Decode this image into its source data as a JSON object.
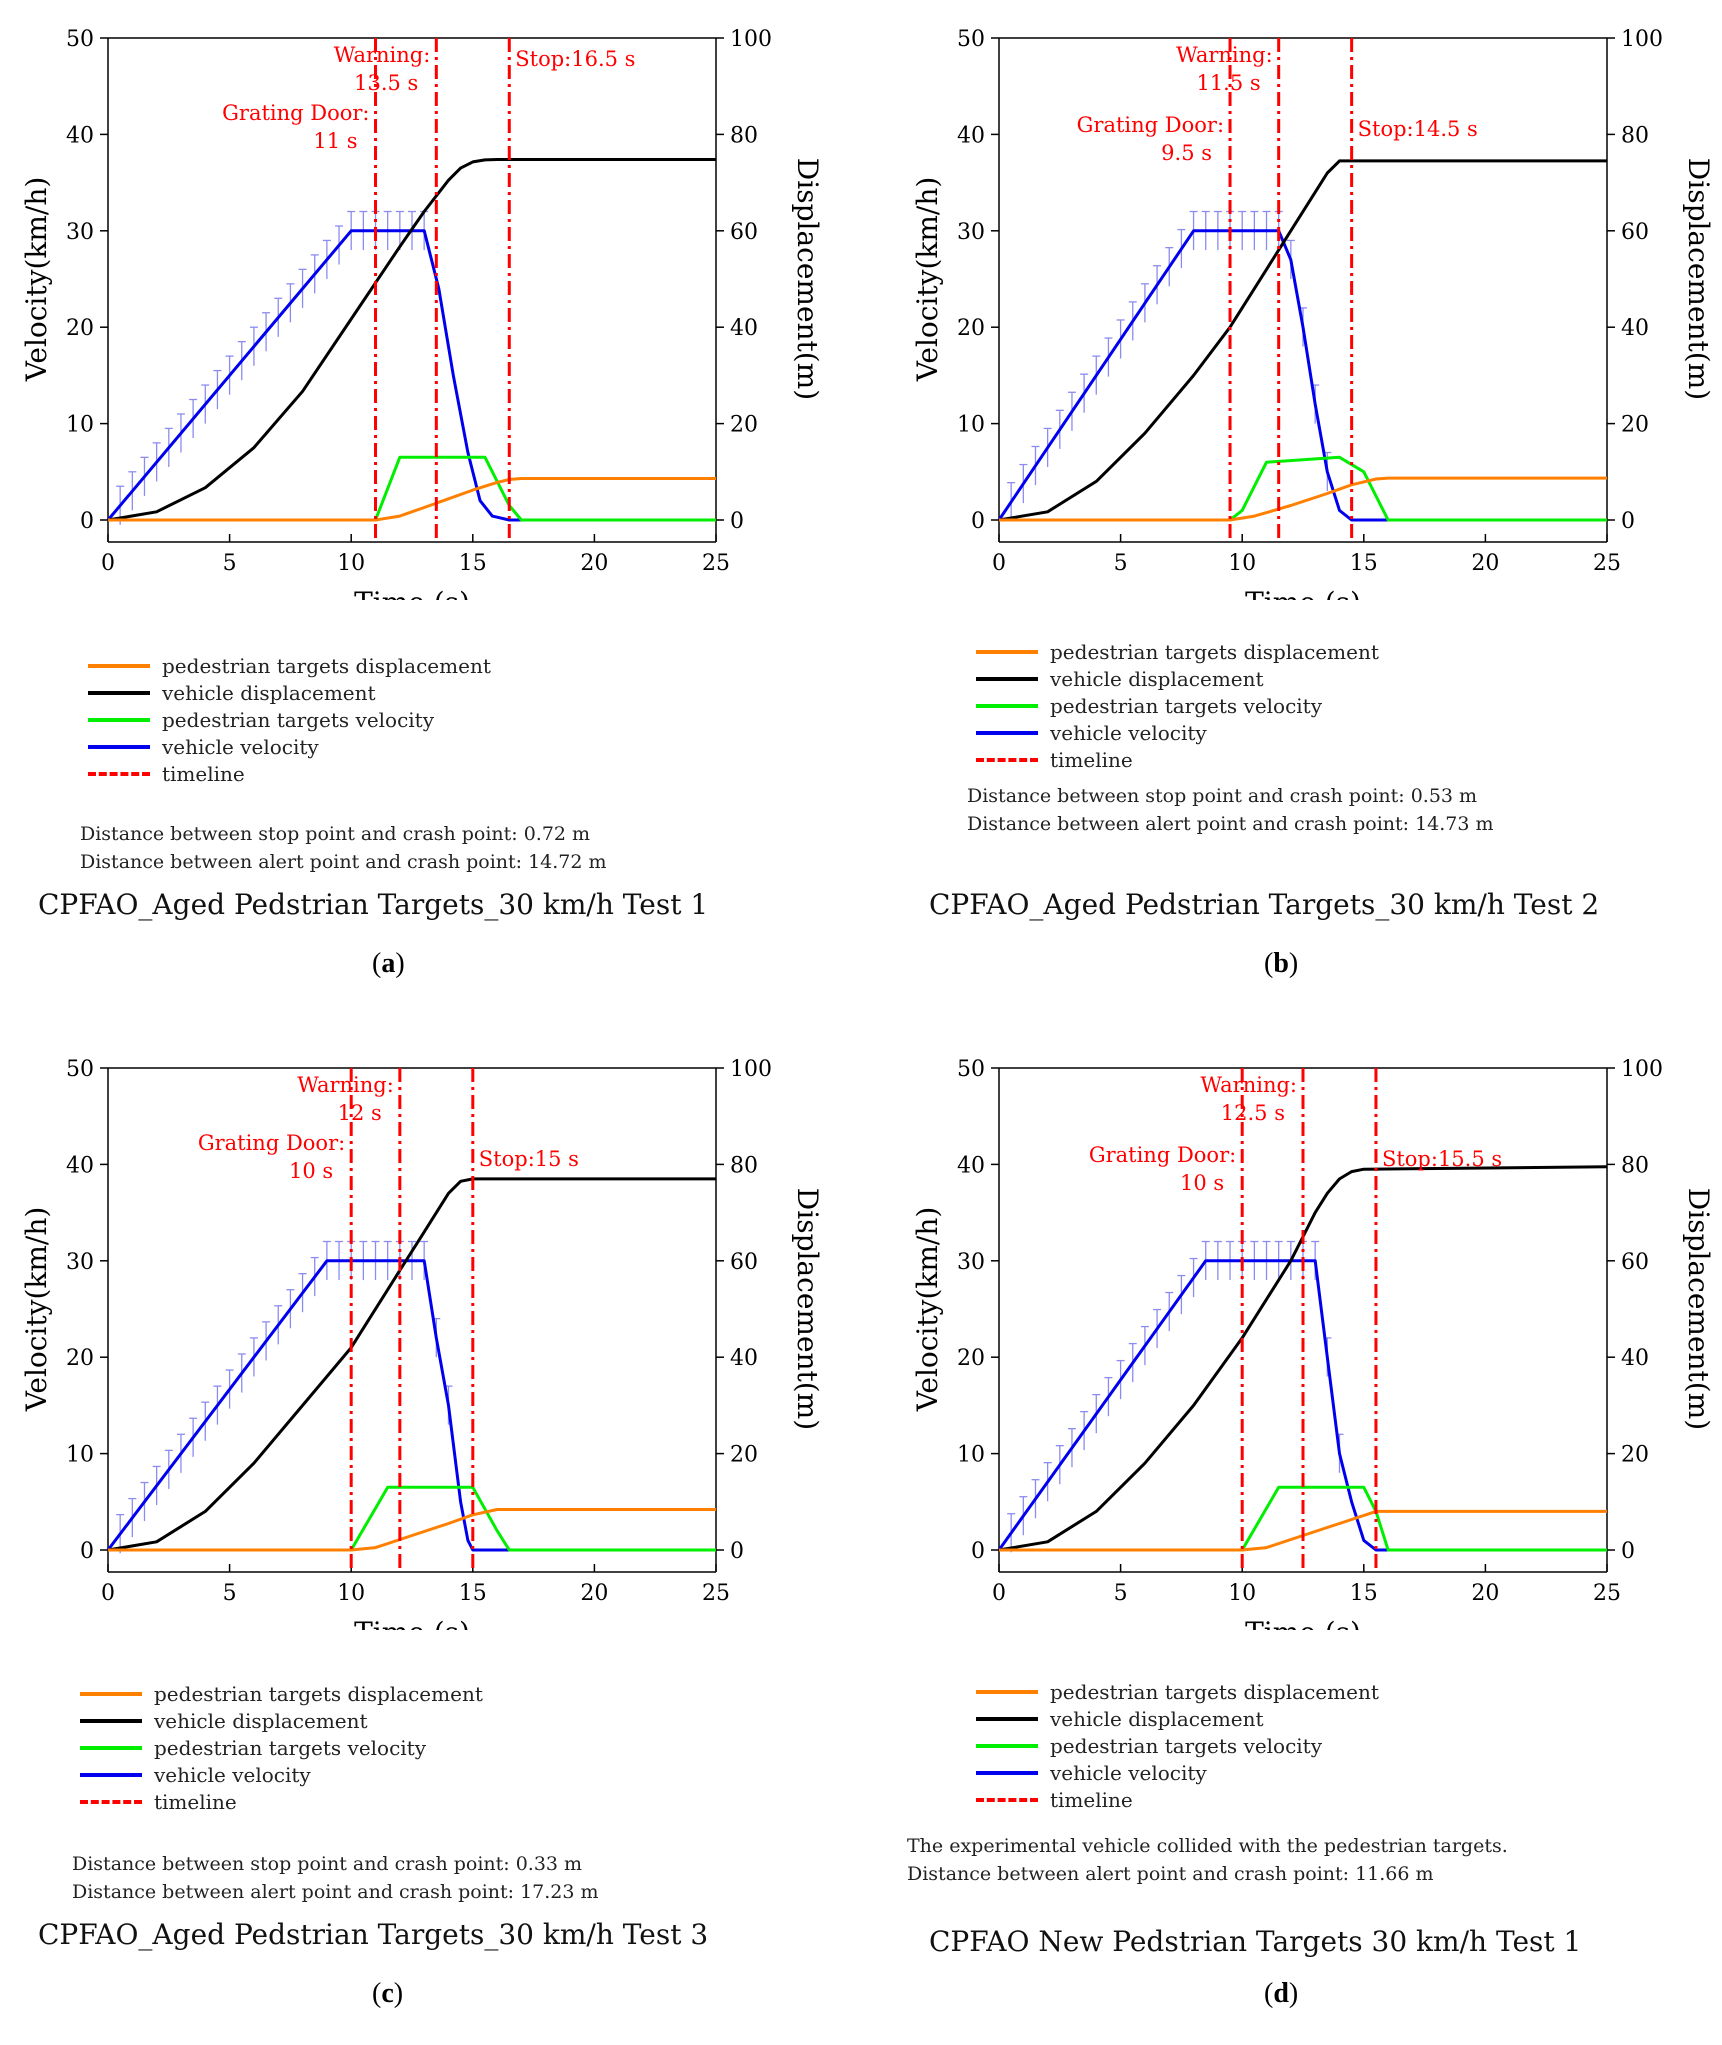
{
  "legend_entries": [
    {
      "label": "pedestrian targets displacement",
      "color": "#ff8000"
    },
    {
      "label": "vehicle displacement",
      "color": "#000000"
    },
    {
      "label": "pedestrian targets velocity",
      "color": "#00ee00"
    },
    {
      "label": "vehicle velocity",
      "color": "#0000ee"
    },
    {
      "label": "timeline",
      "color": "#ff0000"
    }
  ],
  "chart_data": [
    {
      "id": "a",
      "type": "line",
      "title": "CPFAO_Aged Pedstrian Targets_30 km/h Test 1",
      "panel_label": "a",
      "xlabel": "Time (s)",
      "ylabel": "Velocity(km/h)",
      "y2label": "Displacement(m)",
      "xlim": [
        0,
        25
      ],
      "ylim": [
        0,
        50
      ],
      "y2lim": [
        0,
        100
      ],
      "xticks": [
        0,
        5,
        10,
        15,
        20,
        25
      ],
      "yticks": [
        0,
        10,
        20,
        30,
        40,
        50
      ],
      "y2ticks": [
        0,
        20,
        40,
        60,
        80,
        100
      ],
      "timelines": [
        11,
        13.5,
        16.5
      ],
      "annotations": [
        {
          "lines": [
            "Grating Door:",
            "11 s"
          ],
          "x": 11
        },
        {
          "lines": [
            "Warning:",
            "13.5 s"
          ],
          "x": 13.5
        },
        {
          "lines": [
            "Stop:16.5 s"
          ],
          "x": 16.5
        }
      ],
      "series": [
        {
          "name": "vehicle velocity",
          "axis": "left",
          "x": [
            0,
            10,
            13,
            13.6,
            14.2,
            14.8,
            15.3,
            15.8,
            16.5,
            25
          ],
          "y": [
            0,
            30,
            30,
            24,
            15,
            7,
            2,
            0.4,
            0,
            0
          ]
        },
        {
          "name": "pedestrian targets velocity",
          "axis": "left",
          "x": [
            0,
            11,
            12,
            15.5,
            16.5,
            17,
            25
          ],
          "y": [
            0,
            0,
            6.5,
            6.5,
            1.5,
            0,
            0
          ]
        },
        {
          "name": "vehicle displacement",
          "axis": "right",
          "x": [
            0,
            2,
            4,
            6,
            8,
            10,
            12,
            13,
            14,
            14.5,
            15,
            15.5,
            16,
            25
          ],
          "y": [
            0,
            1.7,
            6.7,
            15,
            26.7,
            41.7,
            56.7,
            64,
            70.5,
            73,
            74.3,
            74.7,
            74.8,
            74.8
          ]
        },
        {
          "name": "pedestrian targets displacement",
          "axis": "right",
          "x": [
            0,
            11,
            12,
            13,
            14,
            15,
            16,
            16.5,
            17,
            25
          ],
          "y": [
            0,
            0,
            0.8,
            2.6,
            4.4,
            6.2,
            7.8,
            8.4,
            8.6,
            8.6
          ]
        }
      ],
      "errorbars": {
        "x": [
          0.5,
          1,
          1.5,
          2,
          2.5,
          3,
          3.5,
          4,
          4.5,
          5,
          5.5,
          6,
          6.5,
          7,
          7.5,
          8,
          8.5,
          9,
          9.5,
          10,
          10.5,
          11,
          11.5,
          12,
          12.5,
          13
        ],
        "err": 2
      },
      "notes": [
        "Distance between stop point and crash point: 0.72 m",
        "Distance between alert point and crash point: 14.72 m"
      ]
    },
    {
      "id": "b",
      "type": "line",
      "title": "CPFAO_Aged Pedstrian Targets_30 km/h Test 2",
      "panel_label": "b",
      "xlabel": "Time (s)",
      "ylabel": "Velocity(km/h)",
      "y2label": "Displacement(m)",
      "xlim": [
        0,
        25
      ],
      "ylim": [
        0,
        50
      ],
      "y2lim": [
        0,
        100
      ],
      "xticks": [
        0,
        5,
        10,
        15,
        20,
        25
      ],
      "yticks": [
        0,
        10,
        20,
        30,
        40,
        50
      ],
      "y2ticks": [
        0,
        20,
        40,
        60,
        80,
        100
      ],
      "timelines": [
        9.5,
        11.5,
        14.5
      ],
      "annotations": [
        {
          "lines": [
            "Grating Door:",
            "9.5 s"
          ],
          "x": 9.5
        },
        {
          "lines": [
            "Warning:",
            "11.5 s"
          ],
          "x": 11.5
        },
        {
          "lines": [
            "Stop:14.5 s"
          ],
          "x": 14.5
        }
      ],
      "series": [
        {
          "name": "vehicle velocity",
          "axis": "left",
          "x": [
            0,
            8,
            11.5,
            12,
            12.5,
            13,
            13.5,
            14,
            14.5,
            25
          ],
          "y": [
            0,
            30,
            30,
            27,
            20,
            12,
            5,
            1,
            0,
            0
          ]
        },
        {
          "name": "pedestrian targets velocity",
          "axis": "left",
          "x": [
            0,
            9.5,
            10,
            11,
            14,
            15,
            16,
            25
          ],
          "y": [
            0,
            0,
            1,
            6,
            6.5,
            5,
            0,
            0
          ]
        },
        {
          "name": "vehicle displacement",
          "axis": "right",
          "x": [
            0,
            2,
            4,
            6,
            8,
            9.5,
            11,
            12,
            13,
            13.5,
            14,
            25
          ],
          "y": [
            0,
            1.7,
            8,
            18,
            30,
            40,
            52,
            60,
            68,
            72,
            74.5,
            74.5
          ]
        },
        {
          "name": "pedestrian targets displacement",
          "axis": "right",
          "x": [
            0,
            9.5,
            10.5,
            12,
            13.5,
            14.5,
            15.5,
            16,
            25
          ],
          "y": [
            0,
            0,
            0.8,
            3,
            5.5,
            7.3,
            8.5,
            8.7,
            8.7
          ]
        }
      ],
      "errorbars": {
        "x": [
          0.5,
          1,
          1.5,
          2,
          2.5,
          3,
          3.5,
          4,
          4.5,
          5,
          5.5,
          6,
          6.5,
          7,
          7.5,
          8,
          8.5,
          9,
          9.5,
          10,
          10.5,
          11,
          11.5,
          12,
          12.5,
          13,
          13.5
        ],
        "err": 2
      },
      "notes": [
        "Distance between stop point and crash point: 0.53 m",
        "Distance between alert point and crash point: 14.73 m"
      ]
    },
    {
      "id": "c",
      "type": "line",
      "title": "CPFAO_Aged Pedstrian Targets_30 km/h Test 3",
      "panel_label": "c",
      "xlabel": "Time (s)",
      "ylabel": "Velocity(km/h)",
      "y2label": "Displacement(m)",
      "xlim": [
        0,
        25
      ],
      "ylim": [
        0,
        50
      ],
      "y2lim": [
        0,
        100
      ],
      "xticks": [
        0,
        5,
        10,
        15,
        20,
        25
      ],
      "yticks": [
        0,
        10,
        20,
        30,
        40,
        50
      ],
      "y2ticks": [
        0,
        20,
        40,
        60,
        80,
        100
      ],
      "timelines": [
        10,
        12,
        15
      ],
      "annotations": [
        {
          "lines": [
            "Grating Door:",
            "10 s"
          ],
          "x": 10
        },
        {
          "lines": [
            "Warning:",
            "12 s"
          ],
          "x": 12
        },
        {
          "lines": [
            "Stop:15 s"
          ],
          "x": 15
        }
      ],
      "series": [
        {
          "name": "vehicle velocity",
          "axis": "left",
          "x": [
            0,
            9,
            13,
            13.5,
            14,
            14.5,
            14.8,
            15,
            25
          ],
          "y": [
            0,
            30,
            30,
            22,
            15,
            5,
            1,
            0,
            0
          ]
        },
        {
          "name": "pedestrian targets velocity",
          "axis": "left",
          "x": [
            0,
            10,
            11.5,
            15,
            16,
            16.5,
            25
          ],
          "y": [
            0,
            0,
            6.5,
            6.5,
            2,
            0,
            0
          ]
        },
        {
          "name": "vehicle displacement",
          "axis": "right",
          "x": [
            0,
            2,
            4,
            6,
            8,
            10,
            12,
            13,
            14,
            14.5,
            15,
            25
          ],
          "y": [
            0,
            1.7,
            8,
            18,
            30,
            42,
            58,
            66,
            74,
            76.5,
            77,
            77
          ]
        },
        {
          "name": "pedestrian targets displacement",
          "axis": "right",
          "x": [
            0,
            10,
            11,
            12.5,
            14,
            15,
            16,
            25
          ],
          "y": [
            0,
            0,
            0.5,
            3,
            5.5,
            7.3,
            8.4,
            8.4
          ]
        }
      ],
      "errorbars": {
        "x": [
          0.5,
          1,
          1.5,
          2,
          2.5,
          3,
          3.5,
          4,
          4.5,
          5,
          5.5,
          6,
          6.5,
          7,
          7.5,
          8,
          8.5,
          9,
          9.5,
          10,
          10.5,
          11,
          11.5,
          12,
          12.5,
          13,
          13.5,
          14
        ],
        "err": 2
      },
      "notes": [
        "Distance between stop point and crash point: 0.33 m",
        "Distance between alert point and crash point: 17.23 m"
      ]
    },
    {
      "id": "d",
      "type": "line",
      "title": "CPFAO New Pedstrian Targets 30 km/h Test 1",
      "panel_label": "d",
      "xlabel": "Time (s)",
      "ylabel": "Velocity(km/h)",
      "y2label": "Displacement(m)",
      "xlim": [
        0,
        25
      ],
      "ylim": [
        0,
        50
      ],
      "y2lim": [
        0,
        100
      ],
      "xticks": [
        0,
        5,
        10,
        15,
        20,
        25
      ],
      "yticks": [
        0,
        10,
        20,
        30,
        40,
        50
      ],
      "y2ticks": [
        0,
        20,
        40,
        60,
        80,
        100
      ],
      "timelines": [
        10,
        12.5,
        15.5
      ],
      "annotations": [
        {
          "lines": [
            "Grating Door:",
            "10 s"
          ],
          "x": 10
        },
        {
          "lines": [
            "Warning:",
            "12.5 s"
          ],
          "x": 12.5
        },
        {
          "lines": [
            "Stop:15.5 s"
          ],
          "x": 15.5
        }
      ],
      "series": [
        {
          "name": "vehicle velocity",
          "axis": "left",
          "x": [
            0,
            8.5,
            13,
            13.5,
            14,
            14.5,
            15,
            15.5,
            25
          ],
          "y": [
            0,
            30,
            30,
            20,
            10,
            5,
            1,
            0,
            0
          ]
        },
        {
          "name": "pedestrian targets velocity",
          "axis": "left",
          "x": [
            0,
            10,
            11.5,
            15,
            15.5,
            16,
            25
          ],
          "y": [
            0,
            0,
            6.5,
            6.5,
            4,
            0,
            0
          ]
        },
        {
          "name": "vehicle displacement",
          "axis": "right",
          "x": [
            0,
            2,
            4,
            6,
            8,
            10,
            12,
            13,
            13.5,
            14,
            14.5,
            15,
            25
          ],
          "y": [
            0,
            1.7,
            8,
            18,
            30,
            44,
            60,
            70,
            74,
            77,
            78.5,
            79,
            79.5
          ]
        },
        {
          "name": "pedestrian targets displacement",
          "axis": "right",
          "x": [
            0,
            10,
            11,
            12.5,
            14,
            15.5,
            25
          ],
          "y": [
            0,
            0,
            0.5,
            3,
            5.5,
            8,
            8
          ]
        }
      ],
      "errorbars": {
        "x": [
          0.5,
          1,
          1.5,
          2,
          2.5,
          3,
          3.5,
          4,
          4.5,
          5,
          5.5,
          6,
          6.5,
          7,
          7.5,
          8,
          8.5,
          9,
          9.5,
          10,
          10.5,
          11,
          11.5,
          12,
          12.5,
          13,
          13.5,
          14
        ],
        "err": 2
      },
      "notes": [
        "The experimental vehicle collided with the pedestrian targets.",
        "Distance between alert point and crash point: 11.66 m"
      ]
    }
  ]
}
